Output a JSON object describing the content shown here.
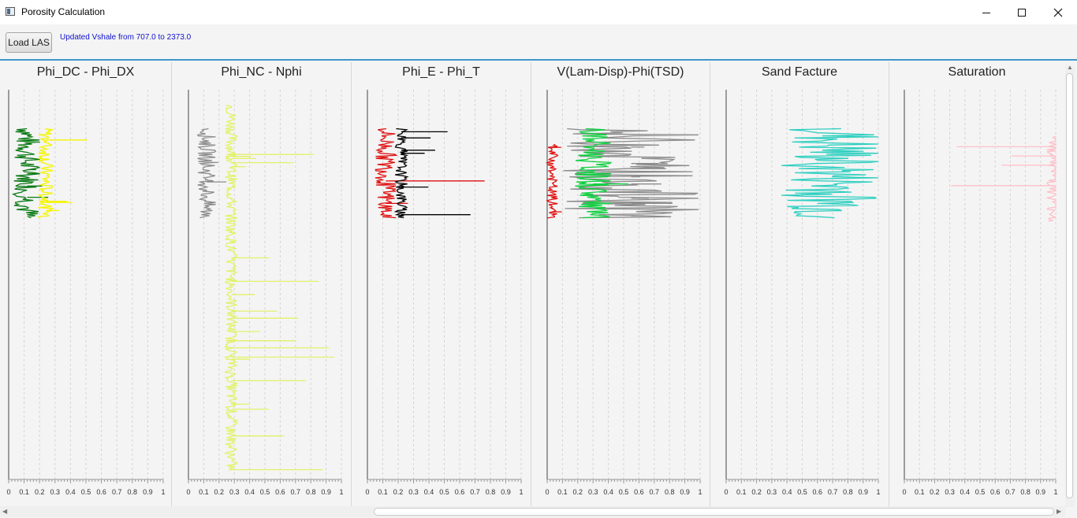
{
  "window": {
    "title": "Porosity Calculation",
    "minimize_icon": "minimize-icon",
    "maximize_icon": "maximize-icon",
    "close_icon": "close-icon"
  },
  "toolbar": {
    "load_label": "Load LAS",
    "status": "Updated Vshale from 707.0 to 2373.0"
  },
  "panels": [
    {
      "title": "Phi_DC - Phi_DX"
    },
    {
      "title": "Phi_NC - Nphi"
    },
    {
      "title": "Phi_E - Phi_T"
    },
    {
      "title": "V(Lam-Disp)-Phi(TSD)"
    },
    {
      "title": "Sand Facture"
    },
    {
      "title": "Saturation"
    }
  ],
  "colors": {
    "dark_green": "#0a7a14",
    "yellow": "#f5f500",
    "gray": "#8c8c8c",
    "light_yellow": "#e2f26a",
    "red": "#e01010",
    "black": "#000000",
    "green": "#10d040",
    "teal": "#2ccfc0",
    "pink": "#ffbfc8",
    "accent": "#3e96c8"
  },
  "chart_data": [
    {
      "type": "line",
      "title": "Phi_DC - Phi_DX",
      "xlim": [
        0,
        1
      ],
      "xticks": [
        "0",
        "0.1",
        "0.2",
        "0.3",
        "0.4",
        "0.5",
        "0.6",
        "0.7",
        "0.8",
        "0.9",
        "1"
      ],
      "series": [
        {
          "color": "dark_green",
          "extent": [
            0.1,
            0.33
          ],
          "center": 0.12,
          "amplitude": 0.09,
          "max_spike": 0.3
        },
        {
          "color": "yellow",
          "extent": [
            0.1,
            0.33
          ],
          "center": 0.24,
          "amplitude": 0.05,
          "max_spike": 0.52
        }
      ]
    },
    {
      "type": "line",
      "title": "Phi_NC - Nphi",
      "xlim": [
        0,
        1
      ],
      "xticks": [
        "0",
        "0.1",
        "0.2",
        "0.3",
        "0.4",
        "0.5",
        "0.6",
        "0.7",
        "0.8",
        "0.9",
        "1"
      ],
      "series": [
        {
          "color": "light_yellow",
          "extent": [
            0.04,
            0.98
          ],
          "center": 0.28,
          "amplitude": 0.04,
          "max_spike": 1.0
        },
        {
          "color": "gray",
          "extent": [
            0.1,
            0.33
          ],
          "center": 0.12,
          "amplitude": 0.06,
          "max_spike": 0.25
        }
      ]
    },
    {
      "type": "line",
      "title": "Phi_E - Phi_T",
      "xlim": [
        0,
        1
      ],
      "xticks": [
        "0",
        "0.1",
        "0.2",
        "0.3",
        "0.4",
        "0.5",
        "0.6",
        "0.7",
        "0.8",
        "0.9",
        "1"
      ],
      "series": [
        {
          "color": "red",
          "extent": [
            0.1,
            0.33
          ],
          "center": 0.12,
          "amplitude": 0.07,
          "max_spike": 1.0
        },
        {
          "color": "black",
          "extent": [
            0.1,
            0.33
          ],
          "center": 0.22,
          "amplitude": 0.04,
          "max_spike": 0.78
        }
      ]
    },
    {
      "type": "line",
      "title": "V(Lam-Disp)-Phi(TSD)",
      "xlim": [
        0,
        1
      ],
      "xticks": [
        "0",
        "0.1",
        "0.2",
        "0.3",
        "0.4",
        "0.5",
        "0.6",
        "0.7",
        "0.8",
        "0.9",
        "1"
      ],
      "series": [
        {
          "color": "gray",
          "extent": [
            0.1,
            0.33
          ],
          "center": 0.55,
          "amplitude": 0.45,
          "max_spike": 1.0
        },
        {
          "color": "green",
          "extent": [
            0.1,
            0.33
          ],
          "center": 0.3,
          "amplitude": 0.12,
          "max_spike": 0.55
        },
        {
          "color": "red",
          "extent": [
            0.14,
            0.33
          ],
          "center": 0.03,
          "amplitude": 0.04,
          "max_spike": 0.1
        }
      ]
    },
    {
      "type": "line",
      "title": "Sand Facture",
      "xlim": [
        0,
        1
      ],
      "xticks": [
        "0",
        "0.1",
        "0.2",
        "0.3",
        "0.4",
        "0.5",
        "0.6",
        "0.7",
        "0.8",
        "0.9",
        "1"
      ],
      "series": [
        {
          "color": "teal",
          "extent": [
            0.1,
            0.33
          ],
          "center": 0.7,
          "amplitude": 0.35,
          "max_spike": 1.0
        }
      ]
    },
    {
      "type": "line",
      "title": "Saturation",
      "xlim": [
        0,
        1
      ],
      "xticks": [
        "0",
        "0.1",
        "0.2",
        "0.3",
        "0.4",
        "0.5",
        "0.6",
        "0.7",
        "0.8",
        "0.9",
        "1"
      ],
      "series": [
        {
          "color": "pink",
          "extent": [
            0.12,
            0.34
          ],
          "center": 0.99,
          "amplitude": 0.05,
          "max_spike": 0.2
        }
      ]
    }
  ]
}
